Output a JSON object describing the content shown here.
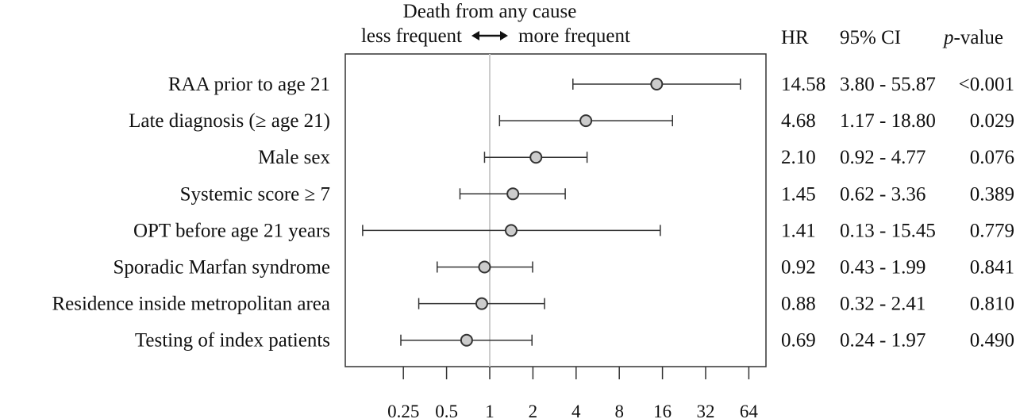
{
  "chart_data": {
    "type": "forest",
    "title": "Death from any cause",
    "direction_left": "less frequent",
    "direction_right": "more frequent",
    "x_scale": "log2",
    "xlim": [
      0.125,
      90
    ],
    "reference_line": 1,
    "x_ticks": [
      0.25,
      0.5,
      1,
      2,
      4,
      8,
      16,
      32,
      64
    ],
    "x_tick_labels": [
      "0.25",
      "0.5",
      "1",
      "2",
      "4",
      "8",
      "16",
      "32",
      "64"
    ],
    "columns": {
      "hr": "HR",
      "ci": "95% CI",
      "p_italic": "p",
      "p_rest": "-value"
    },
    "rows": [
      {
        "label": "RAA prior to age 21",
        "hr": 14.58,
        "lo": 3.8,
        "hi": 55.87,
        "hr_text": "14.58",
        "ci_text": "3.80 - 55.87",
        "p_text": "<0.001"
      },
      {
        "label": "Late diagnosis (≥ age 21)",
        "hr": 4.68,
        "lo": 1.17,
        "hi": 18.8,
        "hr_text": "4.68",
        "ci_text": "1.17 - 18.80",
        "p_text": "0.029"
      },
      {
        "label": "Male sex",
        "hr": 2.1,
        "lo": 0.92,
        "hi": 4.77,
        "hr_text": "2.10",
        "ci_text": "0.92 - 4.77",
        "p_text": "0.076"
      },
      {
        "label": "Systemic score ≥ 7",
        "hr": 1.45,
        "lo": 0.62,
        "hi": 3.36,
        "hr_text": "1.45",
        "ci_text": "0.62 - 3.36",
        "p_text": "0.389"
      },
      {
        "label": "OPT before age 21 years",
        "hr": 1.41,
        "lo": 0.13,
        "hi": 15.45,
        "hr_text": "1.41",
        "ci_text": "0.13 - 15.45",
        "p_text": "0.779"
      },
      {
        "label": "Sporadic Marfan syndrome",
        "hr": 0.92,
        "lo": 0.43,
        "hi": 1.99,
        "hr_text": "0.92",
        "ci_text": "0.43 - 1.99",
        "p_text": "0.841"
      },
      {
        "label": "Residence inside metropolitan area",
        "hr": 0.88,
        "lo": 0.32,
        "hi": 2.41,
        "hr_text": "0.88",
        "ci_text": "0.32 - 2.41",
        "p_text": "0.810"
      },
      {
        "label": "Testing of index patients",
        "hr": 0.69,
        "lo": 0.24,
        "hi": 1.97,
        "hr_text": "0.69",
        "ci_text": "0.24 - 1.97",
        "p_text": "0.490"
      }
    ],
    "colors": {
      "point_fill": "#cccccc",
      "line": "#333333",
      "reference": "#cccccc",
      "frame": "#333333"
    }
  }
}
